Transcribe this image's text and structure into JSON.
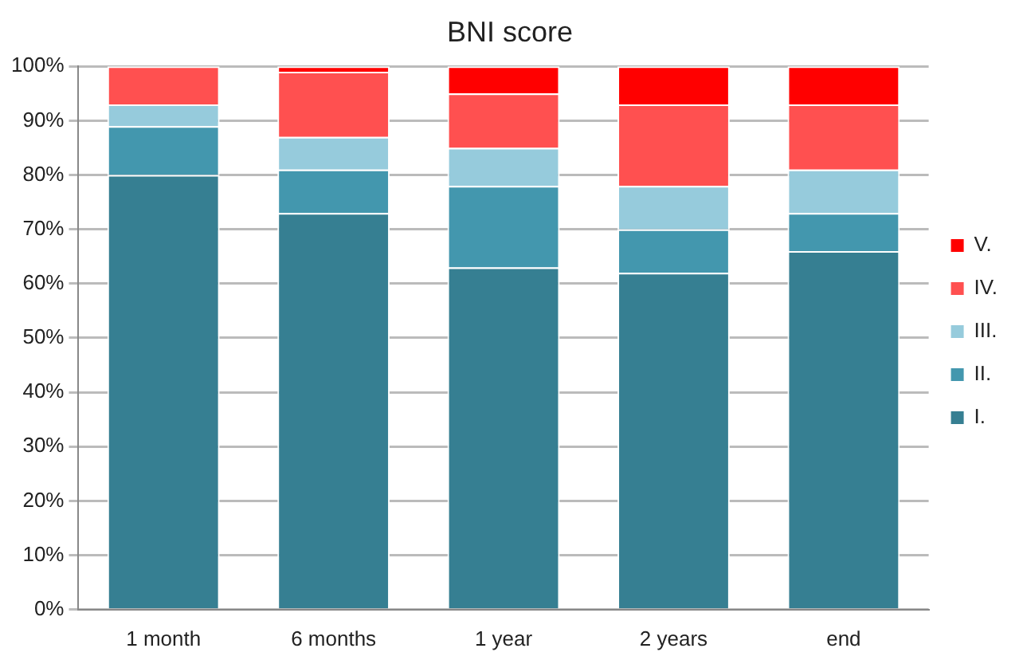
{
  "chart_data": {
    "type": "bar",
    "title": "BNI score",
    "categories": [
      "1 month",
      "6 months",
      "1 year",
      "2 years",
      "end"
    ],
    "series": [
      {
        "name": "I.",
        "color": "#367f92",
        "values": [
          80,
          73,
          63,
          62,
          66
        ]
      },
      {
        "name": "II.",
        "color": "#4397ae",
        "values": [
          9,
          8,
          15,
          8,
          7
        ]
      },
      {
        "name": "III.",
        "color": "#96cbdc",
        "values": [
          4,
          6,
          7,
          8,
          8
        ]
      },
      {
        "name": "IV.",
        "color": "#ff5050",
        "values": [
          7,
          12,
          10,
          15,
          12
        ]
      },
      {
        "name": "V.",
        "color": "#ff0000",
        "values": [
          0,
          1,
          5,
          7,
          7
        ]
      }
    ],
    "stacked": true,
    "ylim": [
      0,
      100
    ],
    "yticks": [
      {
        "value": 0,
        "label": "0%"
      },
      {
        "value": 10,
        "label": "10%"
      },
      {
        "value": 20,
        "label": "20%"
      },
      {
        "value": 30,
        "label": "30%"
      },
      {
        "value": 40,
        "label": "40%"
      },
      {
        "value": 50,
        "label": "50%"
      },
      {
        "value": 60,
        "label": "60%"
      },
      {
        "value": 70,
        "label": "70%"
      },
      {
        "value": 80,
        "label": "80%"
      },
      {
        "value": 90,
        "label": "90%"
      },
      {
        "value": 100,
        "label": "100%"
      }
    ],
    "grid": "y",
    "legend": "right"
  }
}
